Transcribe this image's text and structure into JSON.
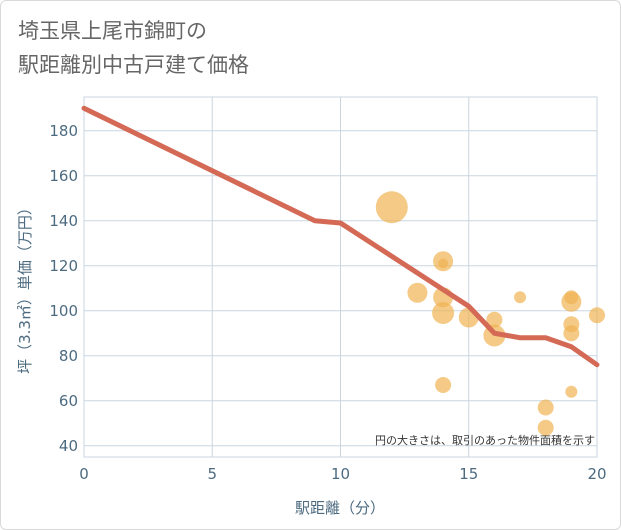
{
  "title_line1": "埼玉県上尾市錦町の",
  "title_line2": "駅距離別中古戸建て価格",
  "colors": {
    "line": "#d46a56",
    "bubble": "#f0b453",
    "axis_text": "#4d6b80",
    "grid": "#c9d6e0"
  },
  "chart_data": {
    "type": "scatter",
    "title": "埼玉県上尾市錦町の駅距離別中古戸建て価格",
    "xlabel": "駅距離（分）",
    "ylabel": "坪（3.3㎡）単価（万円）",
    "xlim": [
      0,
      20
    ],
    "ylim": [
      35,
      195
    ],
    "xticks": [
      0,
      5,
      10,
      15,
      20
    ],
    "yticks": [
      40,
      60,
      80,
      100,
      120,
      140,
      160,
      180
    ],
    "annotation": "円の大きさは、取引のあった物件面積を示す",
    "trend_line": {
      "x": [
        0,
        9,
        10,
        15,
        16,
        17,
        18,
        19,
        20
      ],
      "y": [
        190,
        140,
        139,
        102,
        90,
        88,
        88,
        84,
        76
      ]
    },
    "bubbles": [
      {
        "x": 12,
        "y": 146,
        "size": 16
      },
      {
        "x": 13,
        "y": 108,
        "size": 10
      },
      {
        "x": 14,
        "y": 122,
        "size": 10
      },
      {
        "x": 14,
        "y": 121,
        "size": 5
      },
      {
        "x": 14,
        "y": 106,
        "size": 10
      },
      {
        "x": 14,
        "y": 99,
        "size": 11
      },
      {
        "x": 14,
        "y": 67,
        "size": 8
      },
      {
        "x": 15,
        "y": 97,
        "size": 10
      },
      {
        "x": 16,
        "y": 96,
        "size": 8
      },
      {
        "x": 16,
        "y": 89,
        "size": 11
      },
      {
        "x": 17,
        "y": 106,
        "size": 6
      },
      {
        "x": 18,
        "y": 57,
        "size": 8
      },
      {
        "x": 18,
        "y": 48,
        "size": 8
      },
      {
        "x": 19,
        "y": 106,
        "size": 7
      },
      {
        "x": 19,
        "y": 104,
        "size": 10
      },
      {
        "x": 19,
        "y": 94,
        "size": 8
      },
      {
        "x": 19,
        "y": 90,
        "size": 8
      },
      {
        "x": 19,
        "y": 64,
        "size": 6
      },
      {
        "x": 20,
        "y": 98,
        "size": 8
      }
    ]
  }
}
